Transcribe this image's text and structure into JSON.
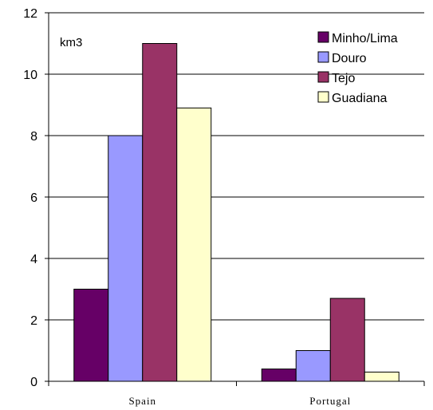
{
  "chart_data": {
    "type": "bar",
    "categories": [
      "Spain",
      "Portugal"
    ],
    "series": [
      {
        "name": "Minho/Lima",
        "values": [
          3.0,
          0.4
        ],
        "color": "#660066"
      },
      {
        "name": "Douro",
        "values": [
          8.0,
          1.0
        ],
        "color": "#9999ff"
      },
      {
        "name": "Tejo",
        "values": [
          11.0,
          2.7
        ],
        "color": "#993366"
      },
      {
        "name": "Guadiana",
        "values": [
          8.9,
          0.3
        ],
        "color": "#ffffcc"
      }
    ],
    "unit_label": "km3",
    "ylim": [
      0,
      12
    ],
    "yticks": [
      0,
      2,
      4,
      6,
      8,
      10,
      12
    ],
    "grid": true,
    "legend_position": "top-right"
  }
}
